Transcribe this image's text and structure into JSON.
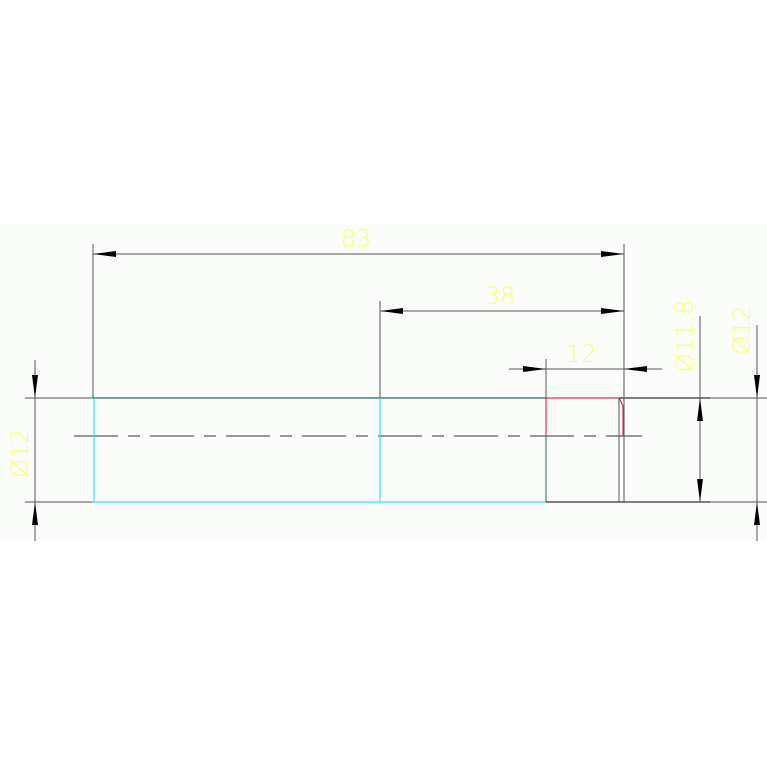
{
  "drawing": {
    "background_color": "#fbfdfb",
    "colors": {
      "dimension_text": "#ffff66",
      "dimension_line": "#555555",
      "outline_cyan": "#33e5e5",
      "outline_dark": "#2f5f66",
      "highlight_red": "#e0335a",
      "centerline": "#777777"
    },
    "dimensions": {
      "overall_length": "83",
      "segment_length": "38",
      "end_length": "12",
      "left_diameter": "Ø12",
      "end_diameter": "Ø11.8",
      "right_diameter": "Ø12"
    }
  }
}
